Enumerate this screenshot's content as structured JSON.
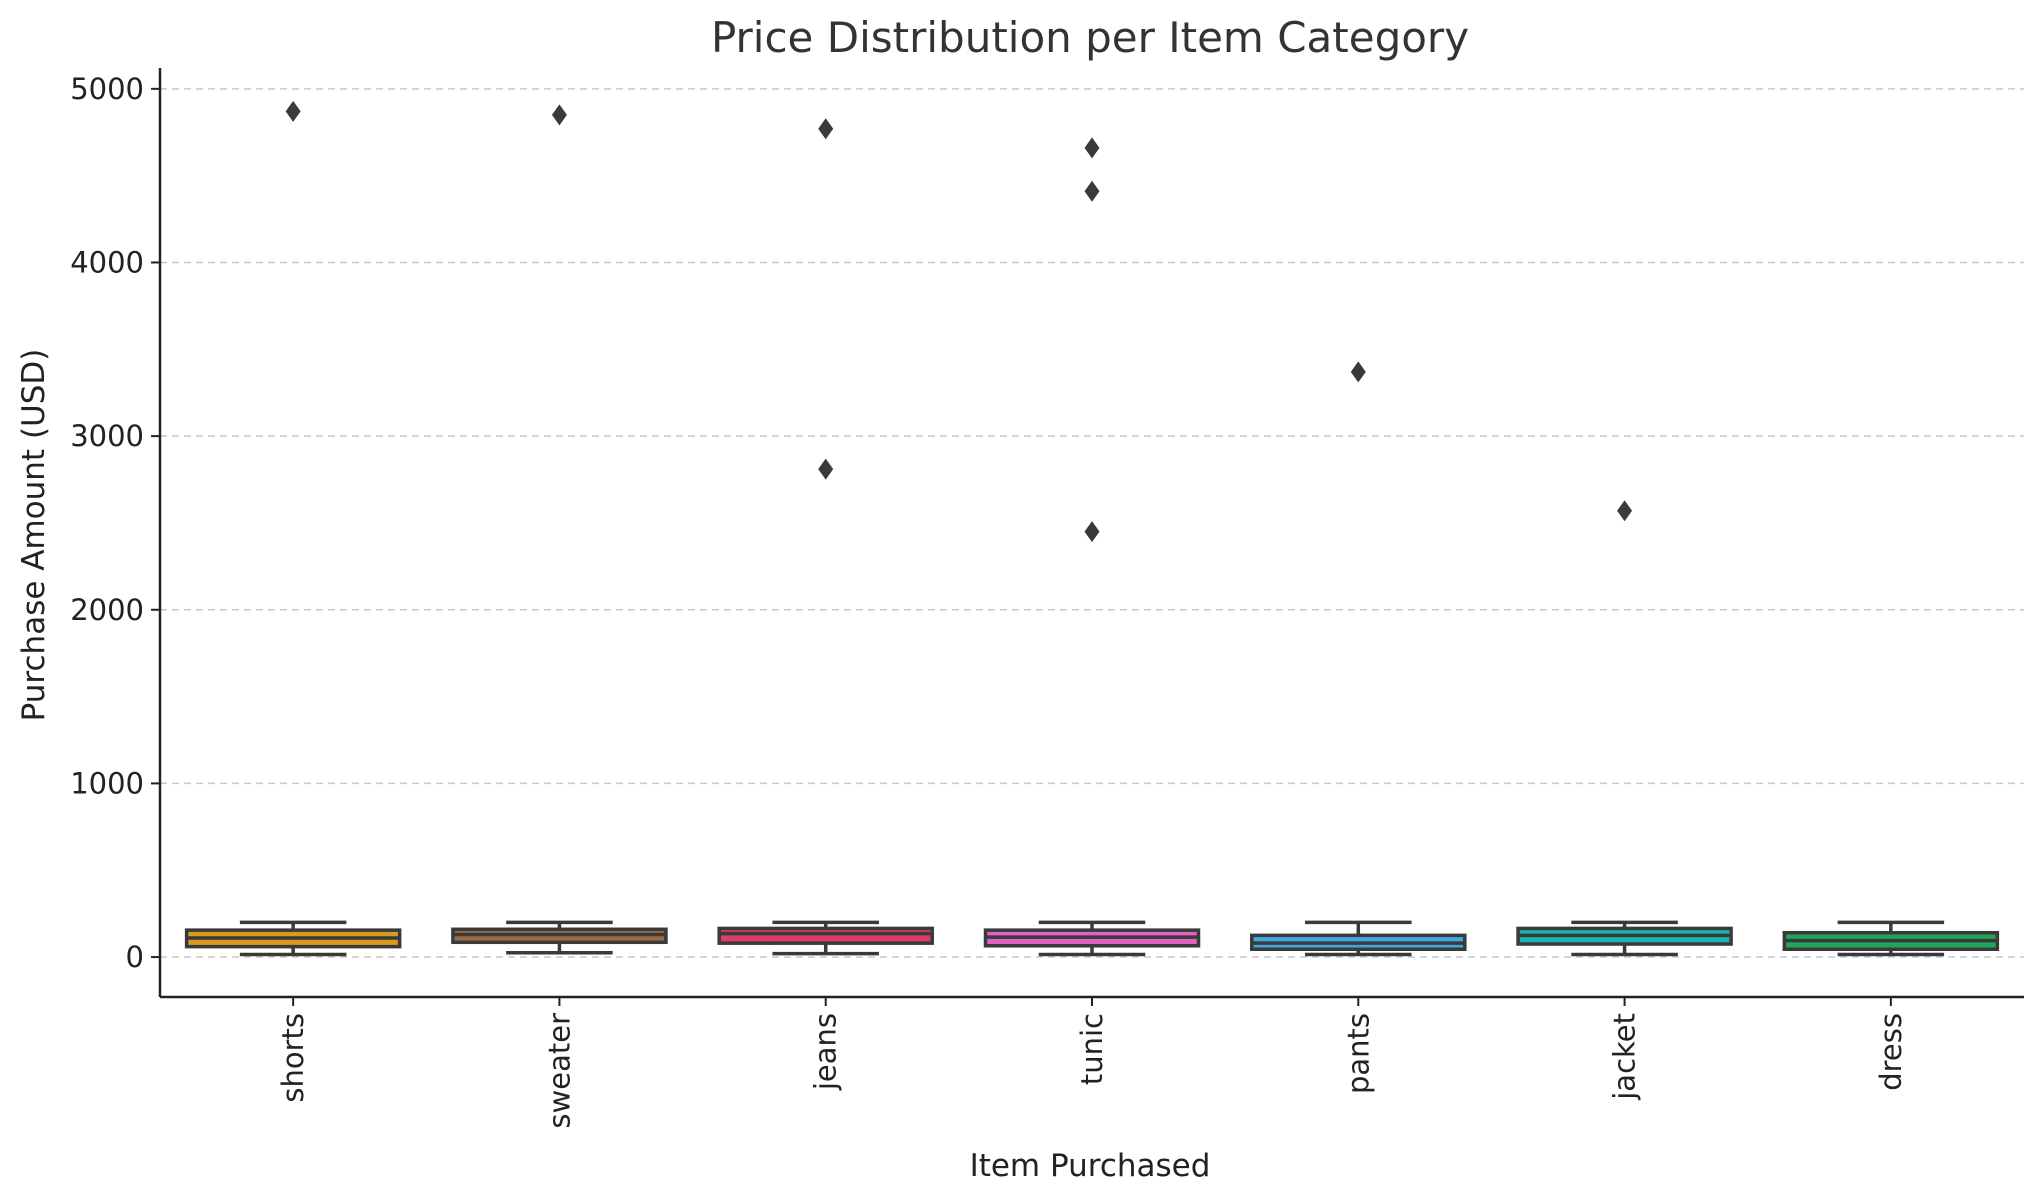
{
  "chart_data": {
    "type": "box",
    "title": "Price Distribution per Item Category",
    "xlabel": "Item Purchased",
    "ylabel": "Purchase Amount (USD)",
    "ylim": [
      -230,
      5120
    ],
    "yticks": [
      0,
      1000,
      2000,
      3000,
      4000,
      5000
    ],
    "grid": "horizontal",
    "categories": [
      "shorts",
      "sweater",
      "jeans",
      "tunic",
      "pants",
      "jacket",
      "dress"
    ],
    "boxes": [
      {
        "category": "shorts",
        "whisker_low": 15,
        "q1": 60,
        "median": 110,
        "q3": 155,
        "whisker_high": 200,
        "outliers": [
          4870
        ],
        "color": "#d99a1e"
      },
      {
        "category": "sweater",
        "whisker_low": 25,
        "q1": 85,
        "median": 130,
        "q3": 160,
        "whisker_high": 200,
        "outliers": [
          4850
        ],
        "color": "#9a6a45"
      },
      {
        "category": "jeans",
        "whisker_low": 20,
        "q1": 80,
        "median": 135,
        "q3": 165,
        "whisker_high": 200,
        "outliers": [
          4770,
          2810
        ],
        "color": "#dc3d6a"
      },
      {
        "category": "tunic",
        "whisker_low": 15,
        "q1": 65,
        "median": 115,
        "q3": 155,
        "whisker_high": 200,
        "outliers": [
          4660,
          4410,
          2450
        ],
        "color": "#e062c2"
      },
      {
        "category": "pants",
        "whisker_low": 15,
        "q1": 45,
        "median": 80,
        "q3": 125,
        "whisker_high": 200,
        "outliers": [
          3370
        ],
        "color": "#3fa8df"
      },
      {
        "category": "jacket",
        "whisker_low": 15,
        "q1": 75,
        "median": 125,
        "q3": 165,
        "whisker_high": 200,
        "outliers": [
          2570
        ],
        "color": "#17b6b5"
      },
      {
        "category": "dress",
        "whisker_low": 15,
        "q1": 45,
        "median": 95,
        "q3": 140,
        "whisker_high": 200,
        "outliers": [],
        "color": "#1ea65a"
      }
    ]
  }
}
